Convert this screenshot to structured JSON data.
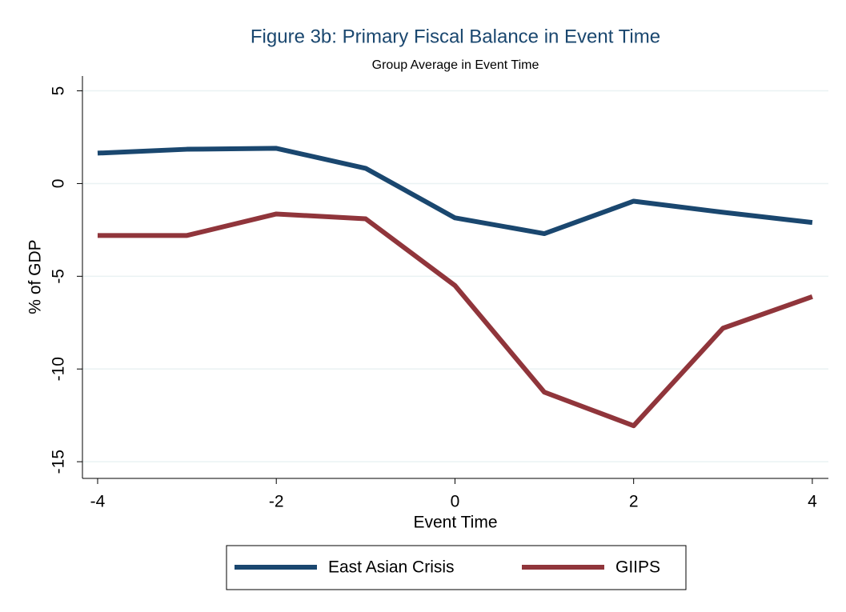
{
  "chart_data": {
    "type": "line",
    "title": "Figure 3b: Primary Fiscal Balance in Event Time",
    "subtitle": "Group Average in Event Time",
    "xlabel": "Event Time",
    "ylabel": "% of GDP",
    "x": [
      -4,
      -3,
      -2,
      -1,
      0,
      1,
      2,
      3,
      4
    ],
    "series": [
      {
        "name": "East Asian Crisis",
        "color": "#1a476f",
        "values": [
          1.64,
          1.85,
          1.9,
          0.82,
          -1.85,
          -2.7,
          -0.95,
          -1.55,
          -2.1
        ]
      },
      {
        "name": "GIIPS",
        "color": "#90353b",
        "values": [
          -2.8,
          -2.8,
          -1.64,
          -1.9,
          -5.5,
          -11.25,
          -13.06,
          -7.8,
          -6.1
        ]
      }
    ],
    "xlim": [
      -4.17,
      4.18
    ],
    "xticks": [
      -4,
      -2,
      0,
      2,
      4
    ],
    "ylim": [
      -15.9,
      5.8
    ],
    "yticks": [
      -15,
      -10,
      -5,
      0,
      5
    ],
    "grid": true,
    "legend": "bottom"
  }
}
